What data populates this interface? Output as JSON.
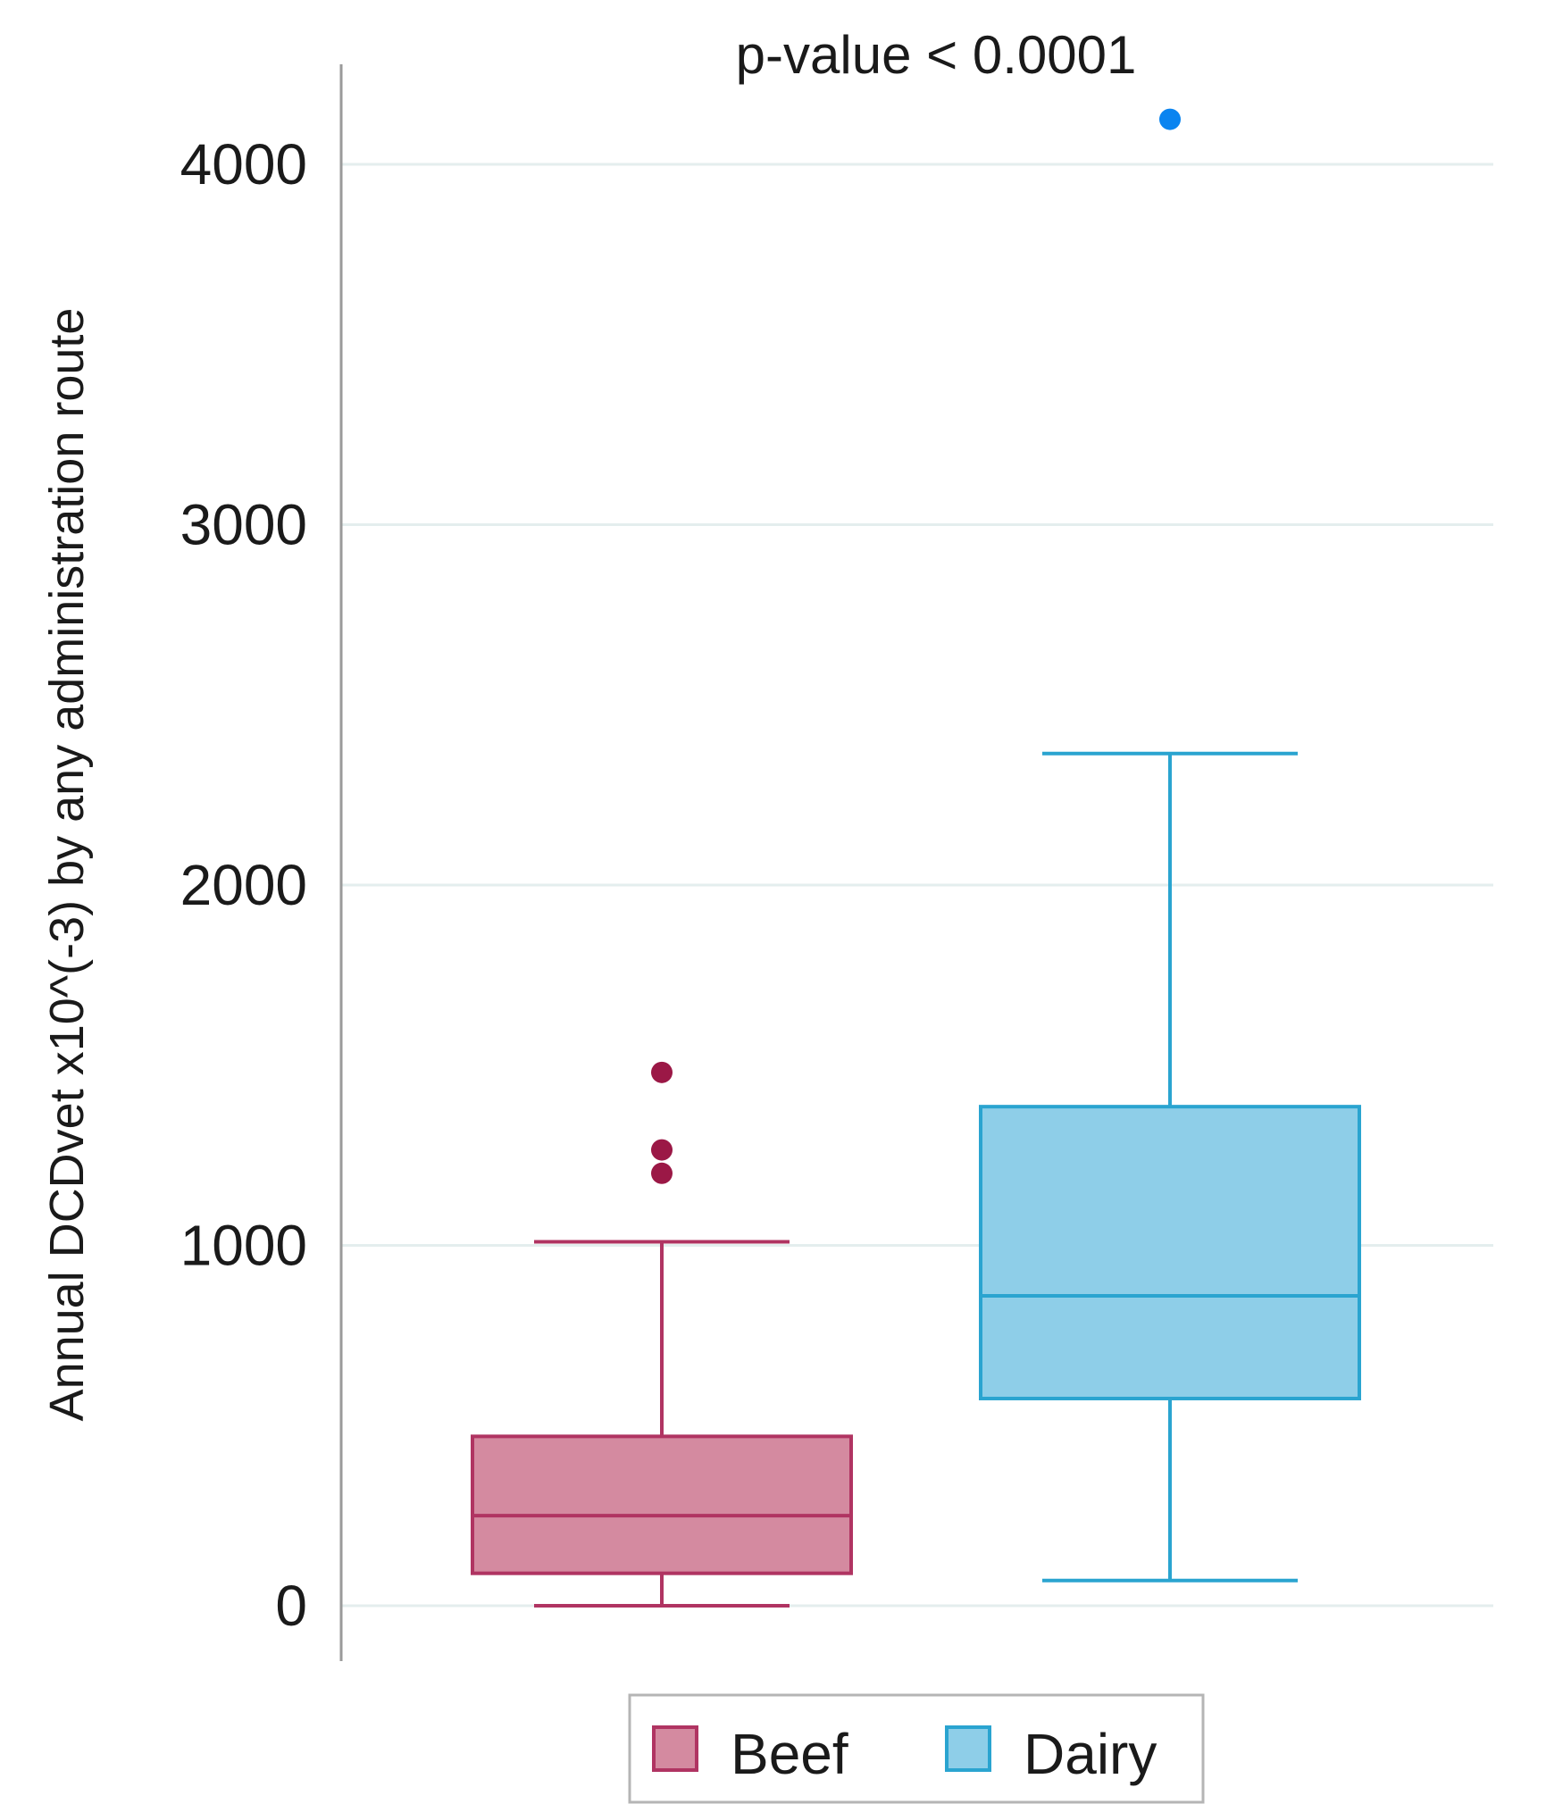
{
  "chart_data": {
    "type": "boxplot",
    "title": "",
    "annotation": "p-value < 0.0001",
    "xlabel": "",
    "ylabel": "Annual DCDvet  x10^(-3) by any administration route",
    "ylim": [
      -150,
      4300
    ],
    "yticks": [
      0,
      1000,
      2000,
      3000,
      4000
    ],
    "ytick_labels": [
      "0",
      "1000",
      "2000",
      "3000",
      "4000"
    ],
    "grid": true,
    "legend_position": "bottom",
    "series": [
      {
        "name": "Beef",
        "fill": "#d48aa0",
        "stroke": "#b03462",
        "outlier_color": "#9b1846",
        "whisker_low": 0,
        "q1": 90,
        "median": 250,
        "q3": 470,
        "whisker_high": 1010,
        "outliers": [
          1200,
          1265,
          1480
        ]
      },
      {
        "name": "Dairy",
        "fill": "#8ecee8",
        "stroke": "#2aa4d0",
        "outlier_color": "#0a84f0",
        "whisker_low": 70,
        "q1": 575,
        "median": 860,
        "q3": 1385,
        "whisker_high": 2365,
        "outliers": [
          4125
        ]
      }
    ]
  }
}
